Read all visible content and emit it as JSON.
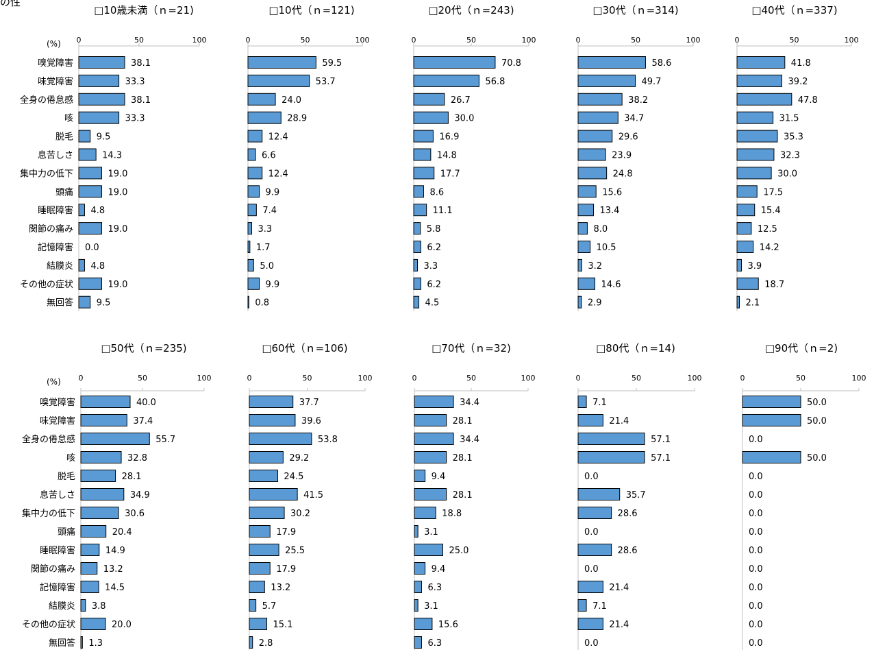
{
  "corner_text": "の性",
  "unit_label": "(%)",
  "chart_data": {
    "type": "bar",
    "orientation": "horizontal",
    "xlim": [
      0,
      100
    ],
    "ticks": [
      0,
      50,
      100
    ],
    "categories": [
      "嗅覚障害",
      "味覚障害",
      "全身の倦怠感",
      "咳",
      "脱毛",
      "息苦しさ",
      "集中力の低下",
      "頭痛",
      "睡眠障害",
      "関節の痛み",
      "記憶障害",
      "結膜炎",
      "その他の症状",
      "無回答"
    ],
    "bar_color": "#5b9bd5",
    "panels": [
      {
        "title": "□10歳未満（ｎ=21)",
        "values": [
          38.1,
          33.3,
          38.1,
          33.3,
          9.5,
          14.3,
          19.0,
          19.0,
          4.8,
          19.0,
          0.0,
          4.8,
          19.0,
          9.5
        ],
        "labels": [
          "38.1",
          "33.3",
          "38.1",
          "33.3",
          "9.5",
          "14.3",
          "19.0",
          "19.0",
          "4.8",
          "19.0",
          "0.0",
          "4.8",
          "19.0",
          "9.5"
        ]
      },
      {
        "title": "□10代（ｎ=121)",
        "values": [
          59.5,
          53.7,
          24.0,
          28.9,
          12.4,
          6.6,
          12.4,
          9.9,
          7.4,
          3.3,
          1.7,
          5.0,
          9.9,
          0.8
        ],
        "labels": [
          "59.5",
          "53.7",
          "24.0",
          "28.9",
          "12.4",
          "6.6",
          "12.4",
          "9.9",
          "7.4",
          "3.3",
          "1.7",
          "5.0",
          "9.9",
          "0.8"
        ]
      },
      {
        "title": "□20代（ｎ=243)",
        "values": [
          70.8,
          56.8,
          26.7,
          30.0,
          16.9,
          14.8,
          17.7,
          8.6,
          11.1,
          5.8,
          6.2,
          3.3,
          6.2,
          4.5
        ],
        "labels": [
          "70.8",
          "56.8",
          "26.7",
          "30.0",
          "16.9",
          "14.8",
          "17.7",
          "8.6",
          "11.1",
          "5.8",
          "6.2",
          "3.3",
          "6.2",
          "4.5"
        ]
      },
      {
        "title": "□30代（ｎ=314)",
        "values": [
          58.6,
          49.7,
          38.2,
          34.7,
          29.6,
          23.9,
          24.8,
          15.6,
          13.4,
          8.0,
          10.5,
          3.2,
          14.6,
          2.9
        ],
        "labels": [
          "58.6",
          "49.7",
          "38.2",
          "34.7",
          "29.6",
          "23.9",
          "24.8",
          "15.6",
          "13.4",
          "8.0",
          "10.5",
          "3.2",
          "14.6",
          "2.9"
        ]
      },
      {
        "title": "□40代（ｎ=337)",
        "values": [
          41.8,
          39.2,
          47.8,
          31.5,
          35.3,
          32.3,
          30.0,
          17.5,
          15.4,
          12.5,
          14.2,
          3.9,
          18.7,
          2.1
        ],
        "labels": [
          "41.8",
          "39.2",
          "47.8",
          "31.5",
          "35.3",
          "32.3",
          "30.0",
          "17.5",
          "15.4",
          "12.5",
          "14.2",
          "3.9",
          "18.7",
          "2.1"
        ]
      },
      {
        "title": "□50代（ｎ=235)",
        "values": [
          40.0,
          37.4,
          55.7,
          32.8,
          28.1,
          34.9,
          30.6,
          20.4,
          14.9,
          13.2,
          14.5,
          3.8,
          20.0,
          1.3
        ],
        "labels": [
          "40.0",
          "37.4",
          "55.7",
          "32.8",
          "28.1",
          "34.9",
          "30.6",
          "20.4",
          "14.9",
          "13.2",
          "14.5",
          "3.8",
          "20.0",
          "1.3"
        ]
      },
      {
        "title": "□60代（ｎ=106)",
        "values": [
          37.7,
          39.6,
          53.8,
          29.2,
          24.5,
          41.5,
          30.2,
          17.9,
          25.5,
          17.9,
          13.2,
          5.7,
          15.1,
          2.8
        ],
        "labels": [
          "37.7",
          "39.6",
          "53.8",
          "29.2",
          "24.5",
          "41.5",
          "30.2",
          "17.9",
          "25.5",
          "17.9",
          "13.2",
          "5.7",
          "15.1",
          "2.8"
        ]
      },
      {
        "title": "□70代（ｎ=32)",
        "values": [
          34.4,
          28.1,
          34.4,
          28.1,
          9.4,
          28.1,
          18.8,
          3.1,
          25.0,
          9.4,
          6.3,
          3.1,
          15.6,
          6.3
        ],
        "labels": [
          "34.4",
          "28.1",
          "34.4",
          "28.1",
          "9.4",
          "28.1",
          "18.8",
          "3.1",
          "25.0",
          "9.4",
          "6.3",
          "3.1",
          "15.6",
          "6.3"
        ]
      },
      {
        "title": "□80代（ｎ=14)",
        "values": [
          7.1,
          21.4,
          57.1,
          57.1,
          0.0,
          35.7,
          28.6,
          0.0,
          28.6,
          0.0,
          21.4,
          7.1,
          21.4,
          0.0
        ],
        "labels": [
          "7.1",
          "21.4",
          "57.1",
          "57.1",
          "0.0",
          "35.7",
          "28.6",
          "0.0",
          "28.6",
          "0.0",
          "21.4",
          "7.1",
          "21.4",
          "0.0"
        ]
      },
      {
        "title": "□90代（ｎ=2)",
        "values": [
          50.0,
          50.0,
          0.0,
          50.0,
          0.0,
          0.0,
          0.0,
          0.0,
          0.0,
          0.0,
          0.0,
          0.0,
          0.0,
          0.0
        ],
        "labels": [
          "50.0",
          "50.0",
          "0.0",
          "50.0",
          "0.0",
          "0.0",
          "0.0",
          "0.0",
          "0.0",
          "0.0",
          "0.0",
          "0.0",
          "0.0",
          "0.0"
        ]
      }
    ]
  }
}
